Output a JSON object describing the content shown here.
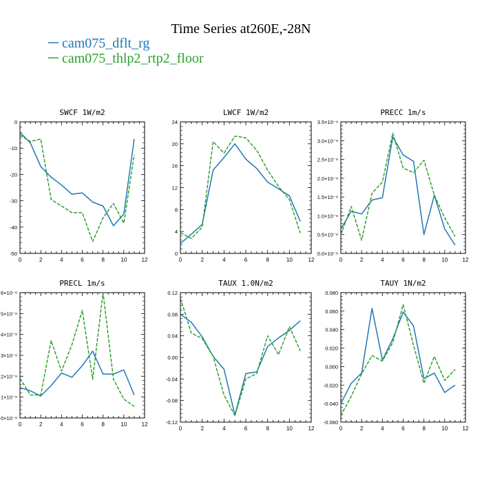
{
  "figure": {
    "title": "Time Series at260E,-28N",
    "legend": [
      {
        "label": "cam075_dflt_rg",
        "color": "#1f77b4",
        "dash": false
      },
      {
        "label": "cam075_thlp2_rtp2_floor",
        "color": "#2ca02c",
        "dash": true
      }
    ]
  },
  "chart_data": [
    {
      "type": "line",
      "title": "SWCF   1W/m2",
      "xlim": [
        0,
        12
      ],
      "xticks": [
        0,
        2,
        4,
        6,
        8,
        10,
        12
      ],
      "xtick_labels": [
        "0",
        "2",
        "4",
        "6",
        "8",
        "10",
        "12"
      ],
      "ylim": [
        -50,
        0
      ],
      "yticks": [
        -50,
        -40,
        -30,
        -20,
        -10,
        0
      ],
      "ytick_labels": [
        "-50",
        "-40",
        "-30",
        "-20",
        "-10",
        "0"
      ],
      "x": [
        0,
        1,
        2,
        3,
        4,
        5,
        6,
        7,
        8,
        9,
        10,
        11
      ],
      "series": [
        {
          "name": "cam075_dflt_rg",
          "color": "#1f77b4",
          "dash": false,
          "values": [
            -4,
            -8,
            -17,
            -21,
            -24,
            -27.5,
            -27,
            -30.5,
            -32,
            -39.5,
            -35,
            -6.5
          ]
        },
        {
          "name": "cam075_thlp2_rtp2_floor",
          "color": "#2ca02c",
          "dash": true,
          "values": [
            -5,
            -7.5,
            -6.5,
            -29.5,
            -32,
            -34.5,
            -34.5,
            -45.5,
            -36.5,
            -31,
            -38.5,
            -12.5
          ]
        }
      ]
    },
    {
      "type": "line",
      "title": "LWCF   1W/m2",
      "xlim": [
        0,
        12
      ],
      "xticks": [
        0,
        2,
        4,
        6,
        8,
        10,
        12
      ],
      "xtick_labels": [
        "0",
        "2",
        "4",
        "6",
        "8",
        "10",
        "12"
      ],
      "ylim": [
        0,
        24
      ],
      "yticks": [
        0,
        4,
        8,
        12,
        16,
        20,
        24
      ],
      "ytick_labels": [
        "0",
        "4",
        "8",
        "12",
        "16",
        "20",
        "24"
      ],
      "x": [
        0,
        1,
        2,
        3,
        4,
        5,
        6,
        7,
        8,
        9,
        10,
        11
      ],
      "series": [
        {
          "name": "cam075_dflt_rg",
          "color": "#1f77b4",
          "dash": false,
          "values": [
            1.8,
            3.5,
            5.3,
            15.2,
            17.5,
            20,
            17.2,
            15.5,
            13,
            11.8,
            10.5,
            5.8
          ]
        },
        {
          "name": "cam075_thlp2_rtp2_floor",
          "color": "#2ca02c",
          "dash": true,
          "values": [
            3.8,
            2.7,
            4.8,
            20.4,
            18.3,
            21.4,
            21.1,
            18.8,
            15.2,
            12.2,
            9.8,
            3.7
          ]
        }
      ]
    },
    {
      "type": "line",
      "title": "PRECC   1m/s",
      "xlim": [
        0,
        12
      ],
      "xticks": [
        0,
        2,
        4,
        6,
        8,
        10,
        12
      ],
      "xtick_labels": [
        "0",
        "2",
        "4",
        "6",
        "8",
        "10",
        "12"
      ],
      "ylim": [
        0,
        3.5e-08
      ],
      "yticks": [
        0,
        5e-09,
        1e-08,
        1.5e-08,
        2e-08,
        2.5e-08,
        3e-08,
        3.5e-08
      ],
      "ytick_labels": [
        "0.0×10⁻⁸",
        "0.5×10⁻⁸",
        "1.0×10⁻⁸",
        "1.5×10⁻⁸",
        "2.0×10⁻⁸",
        "2.5×10⁻⁸",
        "3.0×10⁻⁸",
        "3.5×10⁻⁸"
      ],
      "x": [
        0,
        1,
        2,
        3,
        4,
        5,
        6,
        7,
        8,
        9,
        10,
        11
      ],
      "series": [
        {
          "name": "cam075_dflt_rg",
          "color": "#1f77b4",
          "dash": false,
          "values": [
            6.5e-09,
            1.12e-08,
            1.05e-08,
            1.42e-08,
            1.48e-08,
            3.1e-08,
            2.62e-08,
            2.45e-08,
            5e-09,
            1.55e-08,
            6.5e-09,
            2.2e-09
          ]
        },
        {
          "name": "cam075_thlp2_rtp2_floor",
          "color": "#2ca02c",
          "dash": true,
          "values": [
            5e-09,
            1.25e-08,
            3.5e-09,
            1.6e-08,
            1.9e-08,
            3.2e-08,
            2.27e-08,
            2.15e-08,
            2.48e-08,
            1.55e-08,
            9.5e-09,
            4.5e-09
          ]
        }
      ]
    },
    {
      "type": "line",
      "title": "PRECL   1m/s",
      "xlim": [
        0,
        12
      ],
      "xticks": [
        0,
        2,
        4,
        6,
        8,
        10,
        12
      ],
      "xtick_labels": [
        "0",
        "2",
        "4",
        "6",
        "8",
        "10",
        "12"
      ],
      "ylim": [
        0,
        6
      ],
      "yticks": [
        0,
        1,
        2,
        3,
        4,
        5,
        6
      ],
      "ytick_labels": [
        "0×10⁻⁸",
        "1×10⁻⁸",
        "2×10⁻⁸",
        "3×10⁻⁸",
        "4×10⁻⁸",
        "5×10⁻⁸",
        "6×10⁻⁸"
      ],
      "x": [
        0,
        1,
        2,
        3,
        4,
        5,
        6,
        7,
        8,
        9,
        10,
        11
      ],
      "series": [
        {
          "name": "cam075_dflt_rg",
          "color": "#1f77b4",
          "dash": false,
          "values": [
            1.45,
            1.3,
            1.05,
            1.55,
            2.15,
            1.95,
            2.5,
            3.2,
            2.1,
            2.1,
            2.3,
            1.1
          ]
        },
        {
          "name": "cam075_thlp2_rtp2_floor",
          "color": "#2ca02c",
          "dash": true,
          "values": [
            1.9,
            1.1,
            1.1,
            3.7,
            2.25,
            3.5,
            5.15,
            1.85,
            6.0,
            1.85,
            0.9,
            0.55
          ]
        }
      ]
    },
    {
      "type": "line",
      "title": "TAUX   1.0N/m2",
      "xlim": [
        0,
        12
      ],
      "xticks": [
        0,
        2,
        4,
        6,
        8,
        10,
        12
      ],
      "xtick_labels": [
        "0",
        "2",
        "4",
        "6",
        "8",
        "10",
        "12"
      ],
      "ylim": [
        -0.12,
        0.12
      ],
      "yticks": [
        -0.12,
        -0.08,
        -0.04,
        0,
        0.04,
        0.08,
        0.12
      ],
      "ytick_labels": [
        "-0.12",
        "-0.08",
        "-0.04",
        "0.00",
        "0.04",
        "0.08",
        "0.12"
      ],
      "x": [
        0,
        1,
        2,
        3,
        4,
        5,
        6,
        7,
        8,
        9,
        10,
        11
      ],
      "series": [
        {
          "name": "cam075_dflt_rg",
          "color": "#1f77b4",
          "dash": false,
          "values": [
            0.08,
            0.065,
            0.038,
            0.002,
            -0.022,
            -0.107,
            -0.03,
            -0.027,
            0.02,
            0.036,
            0.05,
            0.068
          ]
        },
        {
          "name": "cam075_thlp2_rtp2_floor",
          "color": "#2ca02c",
          "dash": true,
          "values": [
            0.11,
            0.045,
            0.035,
            0.002,
            -0.07,
            -0.108,
            -0.04,
            -0.03,
            0.04,
            0.005,
            0.057,
            0.012
          ]
        }
      ]
    },
    {
      "type": "line",
      "title": "TAUY   1N/m2",
      "xlim": [
        0,
        12
      ],
      "xticks": [
        0,
        2,
        4,
        6,
        8,
        10,
        12
      ],
      "xtick_labels": [
        "0",
        "2",
        "4",
        "6",
        "8",
        "10",
        "12"
      ],
      "ylim": [
        -0.06,
        0.08
      ],
      "yticks": [
        -0.06,
        -0.04,
        -0.02,
        0,
        0.02,
        0.04,
        0.06,
        0.08
      ],
      "ytick_labels": [
        "-0.060",
        "-0.040",
        "-0.020",
        "0.000",
        "0.020",
        "0.040",
        "0.060",
        "0.080"
      ],
      "x": [
        0,
        1,
        2,
        3,
        4,
        5,
        6,
        7,
        8,
        9,
        10,
        11
      ],
      "series": [
        {
          "name": "cam075_dflt_rg",
          "color": "#1f77b4",
          "dash": false,
          "values": [
            -0.04,
            -0.018,
            -0.007,
            0.063,
            0.007,
            0.03,
            0.059,
            0.044,
            -0.013,
            -0.007,
            -0.028,
            -0.02
          ]
        },
        {
          "name": "cam075_thlp2_rtp2_floor",
          "color": "#2ca02c",
          "dash": true,
          "values": [
            -0.053,
            -0.032,
            -0.008,
            0.012,
            0.006,
            0.026,
            0.067,
            0.023,
            -0.018,
            0.011,
            -0.015,
            -0.003
          ]
        }
      ]
    }
  ]
}
